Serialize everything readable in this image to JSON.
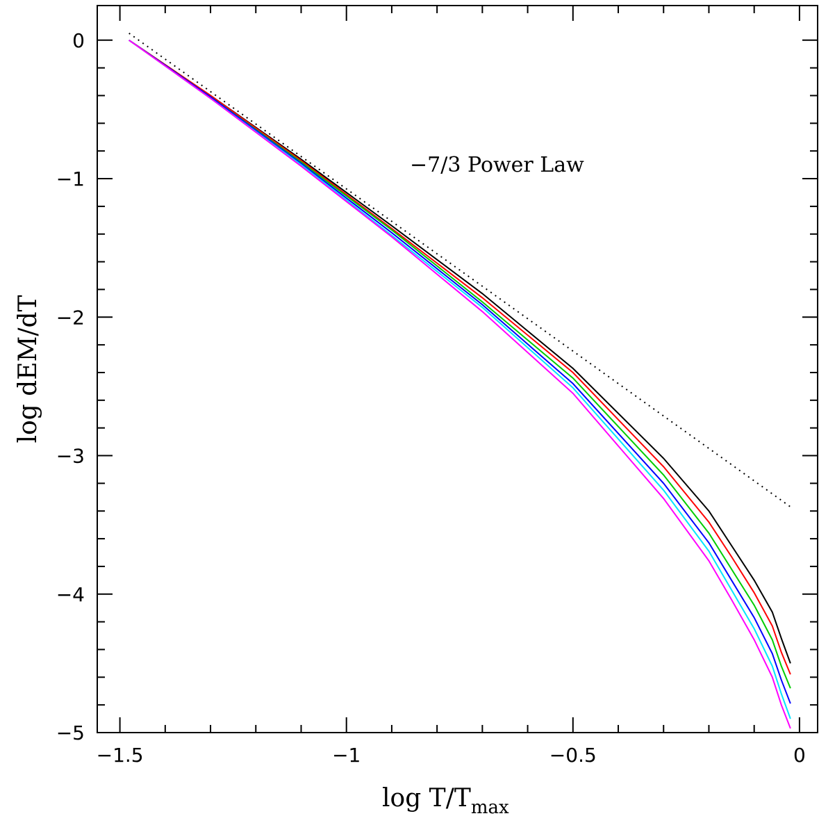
{
  "chart_data": {
    "type": "line",
    "title": "",
    "xlabel": "log T/T",
    "xlabel_subscript": "max",
    "ylabel": "log dEM/dT",
    "xlim": [
      -1.55,
      0.04
    ],
    "ylim": [
      -5,
      0.25
    ],
    "grid": false,
    "x_ticks": [
      {
        "value": -1.5,
        "label": "−1.5"
      },
      {
        "value": -1,
        "label": "−1"
      },
      {
        "value": -0.5,
        "label": "−0.5"
      },
      {
        "value": 0,
        "label": "0"
      }
    ],
    "y_ticks": [
      {
        "value": 0,
        "label": "0"
      },
      {
        "value": -1,
        "label": "−1"
      },
      {
        "value": -2,
        "label": "−2"
      },
      {
        "value": -3,
        "label": "−3"
      },
      {
        "value": -4,
        "label": "−4"
      },
      {
        "value": -5,
        "label": "−5"
      }
    ],
    "annotation": {
      "text": "−7/3 Power Law",
      "x": -0.86,
      "y": -0.95
    },
    "series": [
      {
        "color": "#000000",
        "style": "dotted",
        "x": [
          -1.48,
          -0.02
        ],
        "y": [
          0.05,
          -3.37
        ]
      },
      {
        "color": "#000000",
        "style": "solid",
        "x": [
          -1.48,
          -1.3,
          -1.1,
          -0.9,
          -0.7,
          -0.5,
          -0.3,
          -0.2,
          -0.15,
          -0.1,
          -0.06,
          -0.04,
          -0.02
        ],
        "y": [
          0.0,
          -0.4,
          -0.86,
          -1.34,
          -1.83,
          -2.37,
          -3.02,
          -3.4,
          -3.65,
          -3.9,
          -4.13,
          -4.32,
          -4.5
        ]
      },
      {
        "color": "#ff0000",
        "style": "solid",
        "x": [
          -1.48,
          -1.3,
          -1.1,
          -0.9,
          -0.7,
          -0.5,
          -0.3,
          -0.2,
          -0.15,
          -0.1,
          -0.06,
          -0.04,
          -0.02
        ],
        "y": [
          0.0,
          -0.4,
          -0.87,
          -1.36,
          -1.86,
          -2.4,
          -3.08,
          -3.48,
          -3.73,
          -3.99,
          -4.23,
          -4.42,
          -4.58
        ]
      },
      {
        "color": "#00cc00",
        "style": "solid",
        "x": [
          -1.48,
          -1.3,
          -1.1,
          -0.9,
          -0.7,
          -0.5,
          -0.3,
          -0.2,
          -0.15,
          -0.1,
          -0.06,
          -0.04,
          -0.02
        ],
        "y": [
          0.0,
          -0.41,
          -0.88,
          -1.37,
          -1.89,
          -2.44,
          -3.14,
          -3.56,
          -3.82,
          -4.08,
          -4.33,
          -4.52,
          -4.68
        ]
      },
      {
        "color": "#0000ff",
        "style": "solid",
        "x": [
          -1.48,
          -1.3,
          -1.1,
          -0.9,
          -0.7,
          -0.5,
          -0.3,
          -0.2,
          -0.15,
          -0.1,
          -0.06,
          -0.04,
          -0.02
        ],
        "y": [
          0.0,
          -0.41,
          -0.89,
          -1.39,
          -1.91,
          -2.48,
          -3.2,
          -3.63,
          -3.9,
          -4.17,
          -4.43,
          -4.62,
          -4.79
        ]
      },
      {
        "color": "#00e5ff",
        "style": "solid",
        "x": [
          -1.48,
          -1.3,
          -1.1,
          -0.9,
          -0.7,
          -0.5,
          -0.3,
          -0.2,
          -0.15,
          -0.1,
          -0.06,
          -0.04,
          -0.02
        ],
        "y": [
          0.0,
          -0.42,
          -0.9,
          -1.41,
          -1.93,
          -2.51,
          -3.25,
          -3.69,
          -3.97,
          -4.25,
          -4.52,
          -4.72,
          -4.9
        ]
      },
      {
        "color": "#ff00ff",
        "style": "solid",
        "x": [
          -1.48,
          -1.3,
          -1.1,
          -0.9,
          -0.7,
          -0.5,
          -0.3,
          -0.2,
          -0.15,
          -0.1,
          -0.06,
          -0.04,
          -0.02
        ],
        "y": [
          0.0,
          -0.42,
          -0.91,
          -1.42,
          -1.96,
          -2.55,
          -3.31,
          -3.76,
          -4.04,
          -4.33,
          -4.6,
          -4.8,
          -4.97
        ]
      }
    ]
  }
}
